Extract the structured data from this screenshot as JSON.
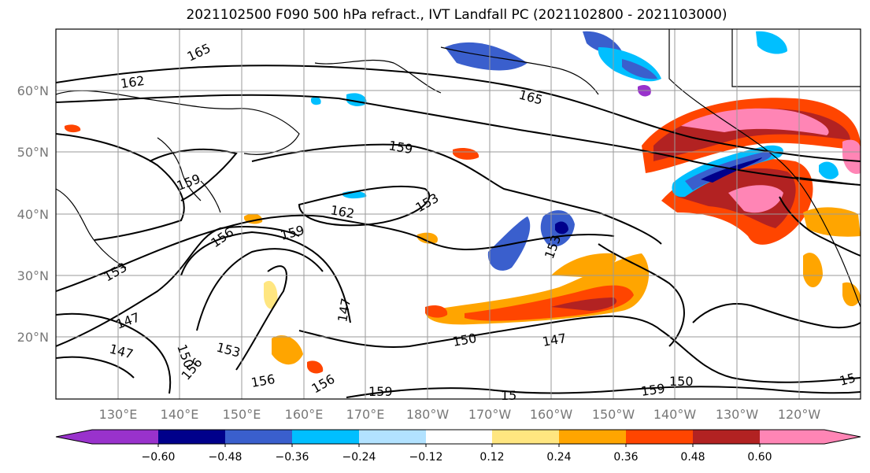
{
  "title": "2021102500 F090 500 hPa refract., IVT Landfall PC (2021102800 - 2021103000)",
  "lat_labels": [
    "60°N",
    "50°N",
    "40°N",
    "30°N",
    "20°N"
  ],
  "lon_labels": [
    "130°E",
    "140°E",
    "150°E",
    "160°E",
    "170°E",
    "180°W",
    "170°W",
    "160°W",
    "150°W",
    "140°W",
    "130°W",
    "120°W"
  ],
  "contour_labels": [
    "165",
    "162",
    "165",
    "159",
    "153",
    "162",
    "159",
    "156",
    "153",
    "159",
    "147",
    "150",
    "147",
    "153",
    "156",
    "156",
    "156",
    "159",
    "150",
    "147",
    "147",
    "159",
    "150",
    "15",
    "153",
    "15"
  ],
  "colorbar": {
    "colors": [
      "#9932cc",
      "#00008b",
      "#3a5fcd",
      "#00bfff",
      "#b2e2ff",
      "#ffffff",
      "#ffffff",
      "#ffe680",
      "#ffa500",
      "#ff4500",
      "#b22222",
      "#ff85b5"
    ],
    "ticks": [
      "−0.60",
      "−0.48",
      "−0.36",
      "−0.24",
      "−0.12",
      "0.12",
      "0.24",
      "0.36",
      "0.48",
      "0.60"
    ]
  }
}
